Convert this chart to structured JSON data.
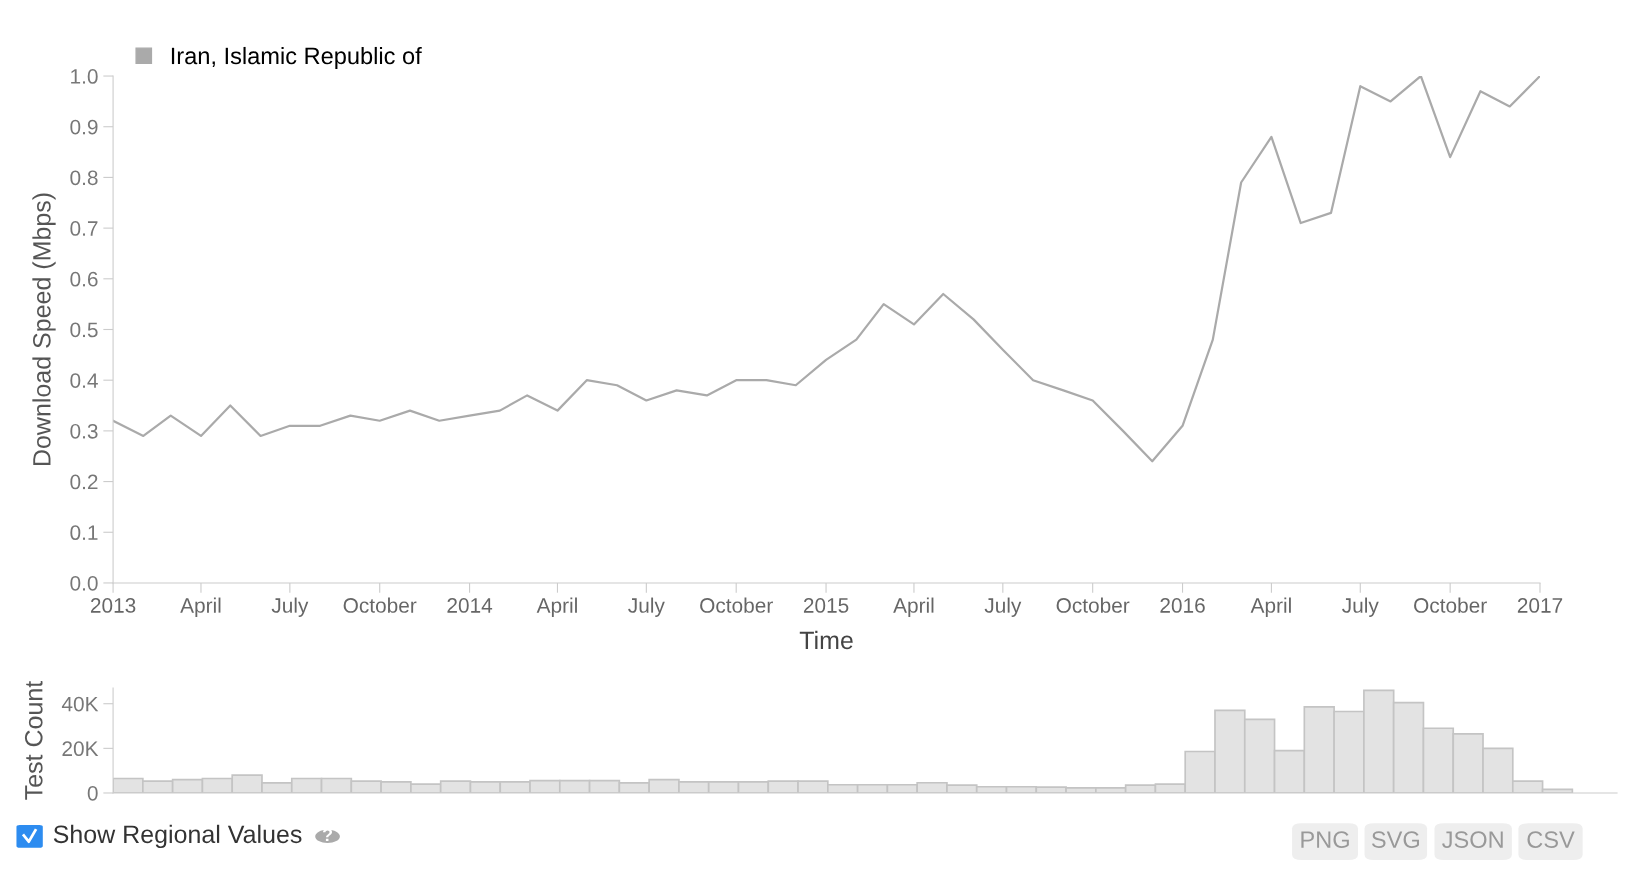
{
  "chart_data": [
    {
      "type": "line",
      "xlabel": "Time",
      "ylabel": "Download Speed (Mbps)",
      "x": [
        "2013-01-01",
        "2013-02-01",
        "2013-03-01",
        "2013-04-01",
        "2013-05-01",
        "2013-06-01",
        "2013-07-01",
        "2013-08-01",
        "2013-09-01",
        "2013-10-01",
        "2013-11-01",
        "2013-12-01",
        "2014-01-01",
        "2014-02-01",
        "2014-03-01",
        "2014-04-01",
        "2014-05-01",
        "2014-06-01",
        "2014-07-01",
        "2014-08-01",
        "2014-09-01",
        "2014-10-01",
        "2014-11-01",
        "2014-12-01",
        "2015-01-01",
        "2015-02-01",
        "2015-03-01",
        "2015-04-01",
        "2015-05-01",
        "2015-06-01",
        "2015-07-01",
        "2015-08-01",
        "2015-09-01",
        "2015-10-01",
        "2015-11-01",
        "2015-12-01",
        "2016-01-01",
        "2016-02-01",
        "2016-03-01",
        "2016-04-01",
        "2016-05-01",
        "2016-06-01",
        "2016-07-01",
        "2016-08-01",
        "2016-09-01",
        "2016-10-01",
        "2016-11-01",
        "2016-12-01",
        "2017-01-01"
      ],
      "series": [
        {
          "name": "Iran, Islamic Republic of",
          "color": "#aaaaaa",
          "values": [
            0.32,
            0.29,
            0.33,
            0.29,
            0.35,
            0.29,
            0.31,
            0.31,
            0.33,
            0.32,
            0.34,
            0.32,
            0.33,
            0.34,
            0.37,
            0.34,
            0.4,
            0.39,
            0.36,
            0.38,
            0.37,
            0.4,
            0.4,
            0.39,
            0.44,
            0.48,
            0.55,
            0.51,
            0.57,
            0.52,
            0.46,
            0.4,
            0.38,
            0.36,
            0.3,
            0.24,
            0.31,
            0.48,
            0.79,
            0.88,
            0.71,
            0.73,
            0.98,
            0.95,
            1.0,
            0.84,
            0.97,
            0.94,
            1.0
          ]
        }
      ],
      "xlim": [
        "2013-01-01",
        "2017-01-01"
      ],
      "xticks": [
        {
          "value": "2013-01-01",
          "label": "2013"
        },
        {
          "value": "2013-04-01",
          "label": "April"
        },
        {
          "value": "2013-07-01",
          "label": "July"
        },
        {
          "value": "2013-10-01",
          "label": "October"
        },
        {
          "value": "2014-01-01",
          "label": "2014"
        },
        {
          "value": "2014-04-01",
          "label": "April"
        },
        {
          "value": "2014-07-01",
          "label": "July"
        },
        {
          "value": "2014-10-01",
          "label": "October"
        },
        {
          "value": "2015-01-01",
          "label": "2015"
        },
        {
          "value": "2015-04-01",
          "label": "April"
        },
        {
          "value": "2015-07-01",
          "label": "July"
        },
        {
          "value": "2015-10-01",
          "label": "October"
        },
        {
          "value": "2016-01-01",
          "label": "2016"
        },
        {
          "value": "2016-04-01",
          "label": "April"
        },
        {
          "value": "2016-07-01",
          "label": "July"
        },
        {
          "value": "2016-10-01",
          "label": "October"
        },
        {
          "value": "2017-01-01",
          "label": "2017"
        }
      ],
      "ylim": [
        0,
        1.0
      ],
      "yticks": [
        {
          "value": 0,
          "label": "0.0"
        },
        {
          "value": 0.1,
          "label": "0.1"
        },
        {
          "value": 0.2,
          "label": "0.2"
        },
        {
          "value": 0.3,
          "label": "0.3"
        },
        {
          "value": 0.4,
          "label": "0.4"
        },
        {
          "value": 0.5,
          "label": "0.5"
        },
        {
          "value": 0.6,
          "label": "0.6"
        },
        {
          "value": 0.7,
          "label": "0.7"
        },
        {
          "value": 0.8,
          "label": "0.8"
        },
        {
          "value": 0.9,
          "label": "0.9"
        },
        {
          "value": 1.0,
          "label": "1.0"
        }
      ],
      "grid": false,
      "legend": "top left",
      "marker": "none",
      "line_style": "solid"
    },
    {
      "type": "bar",
      "ylabel": "Test Count",
      "categories": [
        null,
        null,
        null,
        null,
        null,
        null,
        null,
        null,
        null,
        null,
        null,
        null,
        null,
        null,
        null,
        null,
        null,
        null,
        null,
        null,
        null,
        null,
        null,
        null,
        null,
        null,
        null,
        null,
        null,
        null,
        null,
        null,
        null,
        null,
        null,
        null,
        null,
        null,
        null,
        null,
        null,
        null,
        null,
        null,
        null,
        null,
        null,
        null,
        null
      ],
      "series": [
        {
          "color": "#e3e3e3",
          "values": [
            6500,
            5300,
            6000,
            6500,
            8000,
            4500,
            6500,
            6500,
            5300,
            5000,
            4000,
            5300,
            5000,
            5000,
            5500,
            5500,
            5500,
            4500,
            6000,
            5000,
            5000,
            5000,
            5300,
            5300,
            3700,
            3700,
            3700,
            4600,
            3500,
            2800,
            2800,
            2600,
            2300,
            2300,
            3500,
            4000,
            18600,
            37000,
            33000,
            19000,
            38600,
            36500,
            46000,
            40500,
            29000,
            26500,
            20000,
            5300,
            1600
          ]
        }
      ],
      "ylim": [
        0,
        47000
      ],
      "yticks": [
        0,
        {
          "value": 20000,
          "label": "20K"
        },
        {
          "value": 40000,
          "label": "40K"
        }
      ],
      "tick_labels": "y",
      "grid": false,
      "annotations": [
        "Show Regional Values",
        "?",
        "PNG",
        "SVG",
        "JSON",
        "CSV"
      ]
    }
  ]
}
